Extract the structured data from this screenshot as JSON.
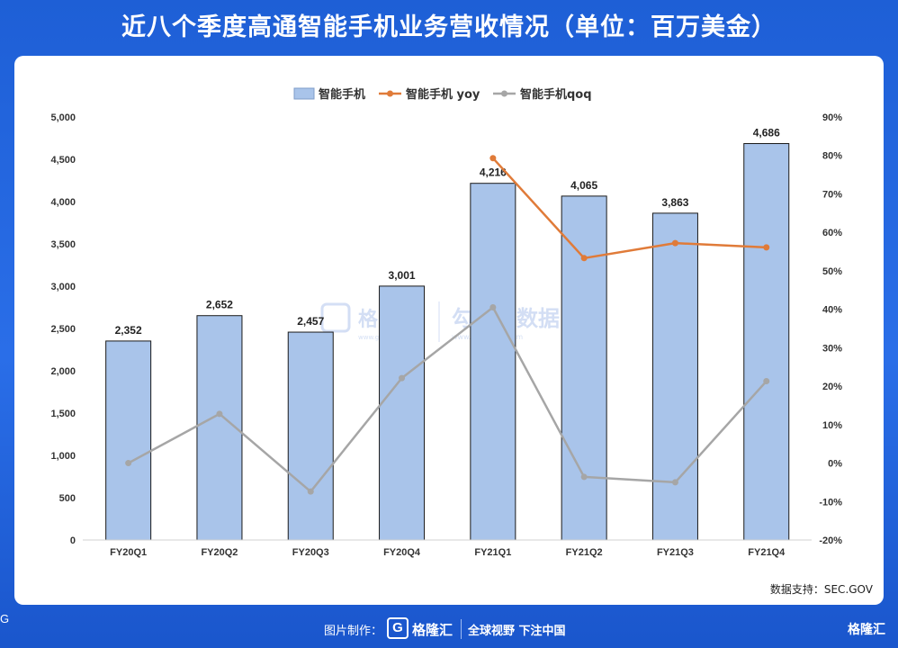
{
  "header": {
    "title": "近八个季度高通智能手机业务营收情况（单位：百万美金）"
  },
  "chart_data": {
    "type": "bar",
    "categories": [
      "FY20Q1",
      "FY20Q2",
      "FY20Q3",
      "FY20Q4",
      "FY21Q1",
      "FY21Q2",
      "FY21Q3",
      "FY21Q4"
    ],
    "series": [
      {
        "name": "智能手机",
        "type": "bar",
        "axis": "left",
        "color": "#a9c4ea",
        "values": [
          2352,
          2652,
          2457,
          3001,
          4216,
          4065,
          3863,
          4686
        ],
        "labels": [
          "2,352",
          "2,652",
          "2,457",
          "3,001",
          "4,216",
          "4,065",
          "3,863",
          "4,686"
        ]
      },
      {
        "name": "智能手机 yoy",
        "type": "line",
        "axis": "right",
        "color": "#e07b39",
        "values": [
          null,
          null,
          null,
          null,
          79.3,
          53.3,
          57.2,
          56.1
        ]
      },
      {
        "name": "智能手机qoq",
        "type": "line",
        "axis": "right",
        "color": "#a6a6a6",
        "values": [
          0.0,
          12.8,
          -7.4,
          22.1,
          40.5,
          -3.6,
          -5.0,
          21.3
        ]
      }
    ],
    "left_axis": {
      "ylim": [
        0,
        5000
      ],
      "ticks": [
        "0",
        "500",
        "1,000",
        "1,500",
        "2,000",
        "2,500",
        "3,000",
        "3,500",
        "4,000",
        "4,500",
        "5,000"
      ]
    },
    "right_axis": {
      "ylim": [
        -20,
        90
      ],
      "ticks": [
        "-20%",
        "-10%",
        "0%",
        "10%",
        "20%",
        "30%",
        "40%",
        "50%",
        "60%",
        "70%",
        "80%",
        "90%"
      ]
    },
    "legend_position": "top-center",
    "grid": false
  },
  "watermark": {
    "brand": "格隆汇",
    "site1": "www.gelonghui.com",
    "brand2": "勾股大数据",
    "site2": "www.gogudata.com"
  },
  "source": "数据支持：SEC.GOV",
  "footer": {
    "credit": "图片制作：",
    "brand": "格隆汇",
    "slogan": "全球视野 下注中国",
    "corner_brand": "格隆汇"
  }
}
